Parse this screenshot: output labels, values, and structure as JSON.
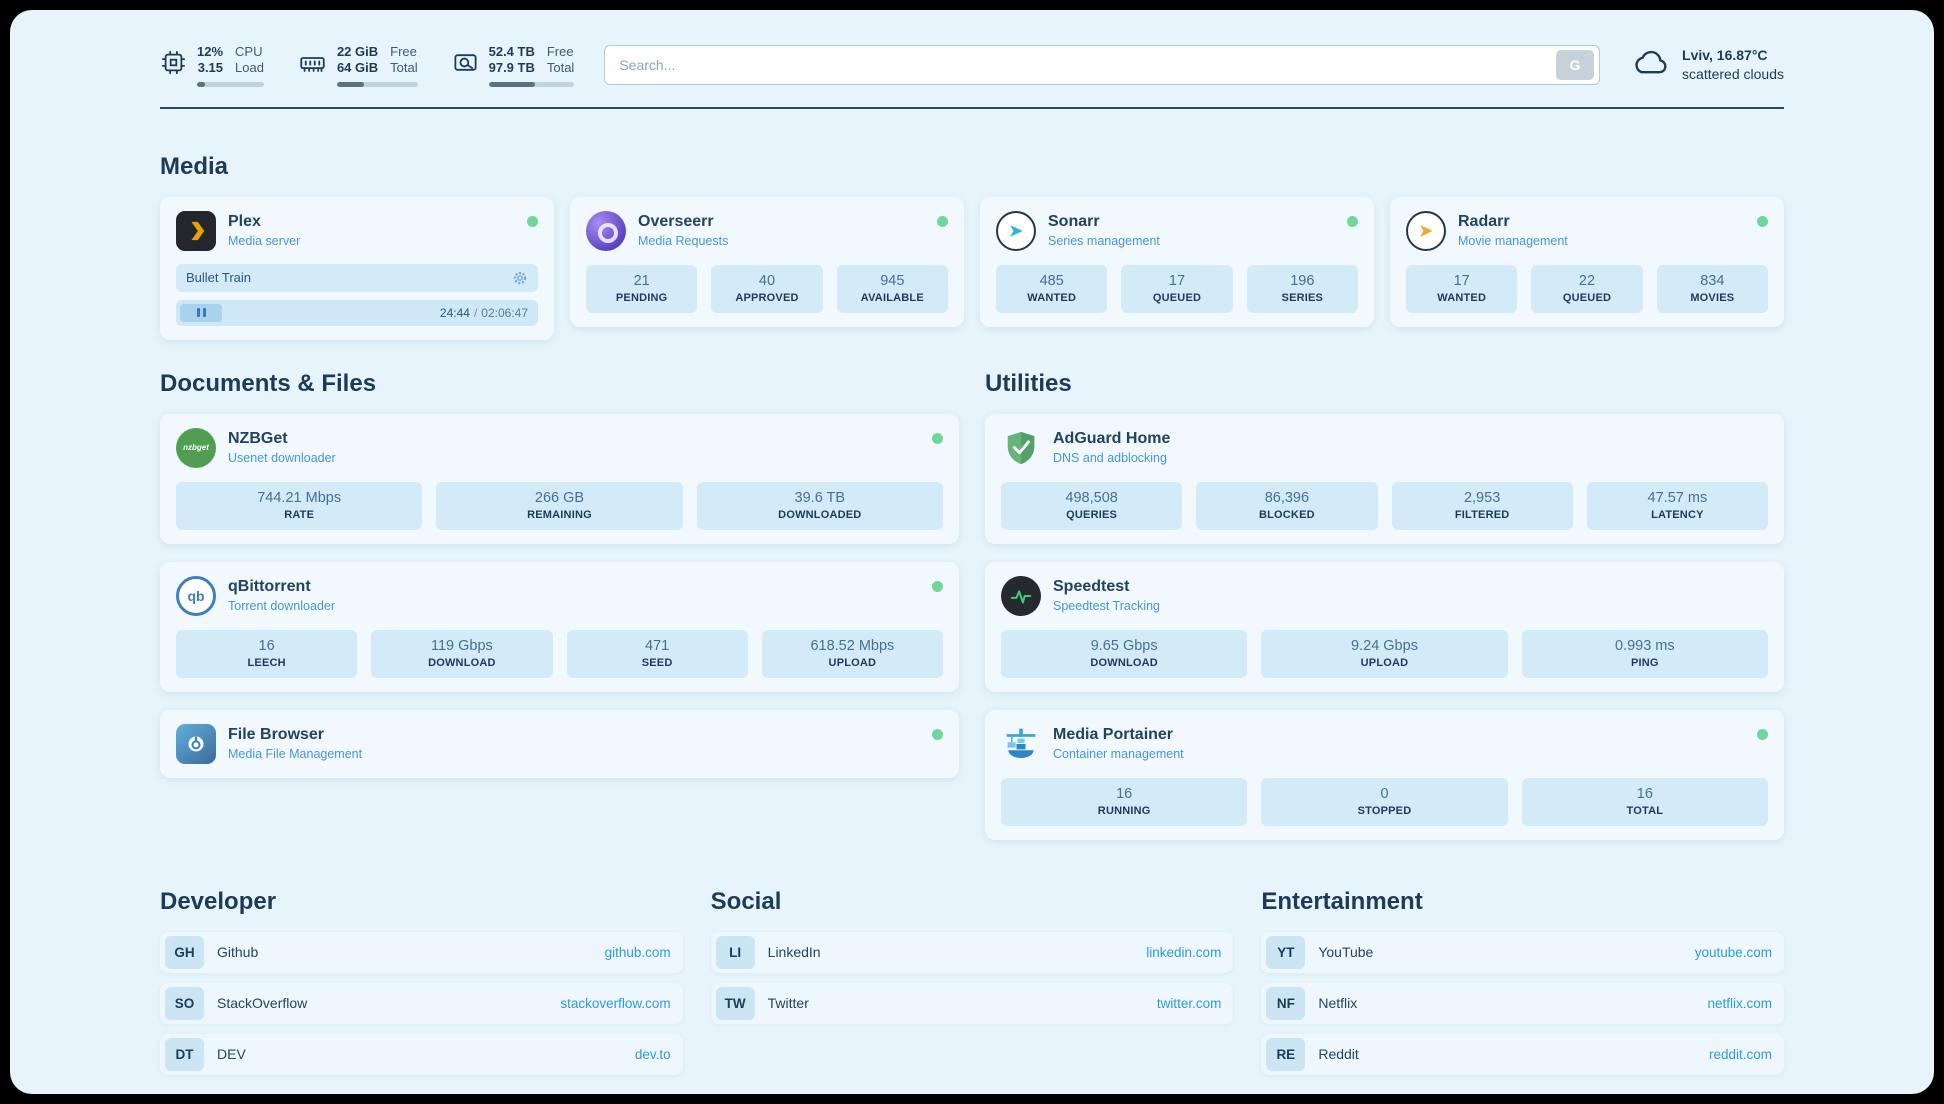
{
  "header": {
    "cpu": {
      "v1": "12%",
      "v2": "3.15",
      "l1": "CPU",
      "l2": "Load",
      "progress": 12
    },
    "ram": {
      "v1": "22 GiB",
      "v2": "64 GiB",
      "l1": "Free",
      "l2": "Total",
      "progress": 34
    },
    "disk": {
      "v1": "52.4 TB",
      "v2": "97.9 TB",
      "l1": "Free",
      "l2": "Total",
      "progress": 54
    },
    "search": {
      "placeholder": "Search...",
      "button_label": "G"
    },
    "weather": {
      "location": "Lviv, 16.87°C",
      "condition": "scattered clouds"
    }
  },
  "media": {
    "title": "Media",
    "plex": {
      "name": "Plex",
      "subtitle": "Media server",
      "now_playing": "Bullet Train",
      "time_current": "24:44",
      "time_separator": "/",
      "time_total": "02:06:47"
    },
    "overseerr": {
      "name": "Overseerr",
      "subtitle": "Media Requests",
      "stats": [
        {
          "value": "21",
          "label": "PENDING"
        },
        {
          "value": "40",
          "label": "APPROVED"
        },
        {
          "value": "945",
          "label": "AVAILABLE"
        }
      ]
    },
    "sonarr": {
      "name": "Sonarr",
      "subtitle": "Series management",
      "stats": [
        {
          "value": "485",
          "label": "WANTED"
        },
        {
          "value": "17",
          "label": "QUEUED"
        },
        {
          "value": "196",
          "label": "SERIES"
        }
      ]
    },
    "radarr": {
      "name": "Radarr",
      "subtitle": "Movie management",
      "stats": [
        {
          "value": "17",
          "label": "WANTED"
        },
        {
          "value": "22",
          "label": "QUEUED"
        },
        {
          "value": "834",
          "label": "MOVIES"
        }
      ]
    }
  },
  "documents": {
    "title": "Documents & Files",
    "nzbget": {
      "name": "NZBGet",
      "subtitle": "Usenet downloader",
      "icon_text": "nzbget",
      "stats": [
        {
          "value": "744.21 Mbps",
          "label": "RATE"
        },
        {
          "value": "266 GB",
          "label": "REMAINING"
        },
        {
          "value": "39.6 TB",
          "label": "DOWNLOADED"
        }
      ]
    },
    "qbittorrent": {
      "name": "qBittorrent",
      "subtitle": "Torrent downloader",
      "icon_text": "qb",
      "stats": [
        {
          "value": "16",
          "label": "LEECH"
        },
        {
          "value": "119 Gbps",
          "label": "DOWNLOAD"
        },
        {
          "value": "471",
          "label": "SEED"
        },
        {
          "value": "618.52 Mbps",
          "label": "UPLOAD"
        }
      ]
    },
    "filebrowser": {
      "name": "File Browser",
      "subtitle": "Media File Management"
    }
  },
  "utilities": {
    "title": "Utilities",
    "adguard": {
      "name": "AdGuard Home",
      "subtitle": "DNS and adblocking",
      "stats": [
        {
          "value": "498,508",
          "label": "QUERIES"
        },
        {
          "value": "86,396",
          "label": "BLOCKED"
        },
        {
          "value": "2,953",
          "label": "FILTERED"
        },
        {
          "value": "47.57 ms",
          "label": "LATENCY"
        }
      ]
    },
    "speedtest": {
      "name": "Speedtest",
      "subtitle": "Speedtest Tracking",
      "stats": [
        {
          "value": "9.65 Gbps",
          "label": "DOWNLOAD"
        },
        {
          "value": "9.24 Gbps",
          "label": "UPLOAD"
        },
        {
          "value": "0.993 ms",
          "label": "PING"
        }
      ]
    },
    "portainer": {
      "name": "Media Portainer",
      "subtitle": "Container management",
      "stats": [
        {
          "value": "16",
          "label": "RUNNING"
        },
        {
          "value": "0",
          "label": "STOPPED"
        },
        {
          "value": "16",
          "label": "TOTAL"
        }
      ]
    }
  },
  "links": {
    "developer": {
      "title": "Developer",
      "items": [
        {
          "abbr": "GH",
          "name": "Github",
          "url": "github.com"
        },
        {
          "abbr": "SO",
          "name": "StackOverflow",
          "url": "stackoverflow.com"
        },
        {
          "abbr": "DT",
          "name": "DEV",
          "url": "dev.to"
        }
      ]
    },
    "social": {
      "title": "Social",
      "items": [
        {
          "abbr": "LI",
          "name": "LinkedIn",
          "url": "linkedin.com"
        },
        {
          "abbr": "TW",
          "name": "Twitter",
          "url": "twitter.com"
        }
      ]
    },
    "entertainment": {
      "title": "Entertainment",
      "items": [
        {
          "abbr": "YT",
          "name": "YouTube",
          "url": "youtube.com"
        },
        {
          "abbr": "NF",
          "name": "Netflix",
          "url": "netflix.com"
        },
        {
          "abbr": "RE",
          "name": "Reddit",
          "url": "reddit.com"
        }
      ]
    }
  }
}
